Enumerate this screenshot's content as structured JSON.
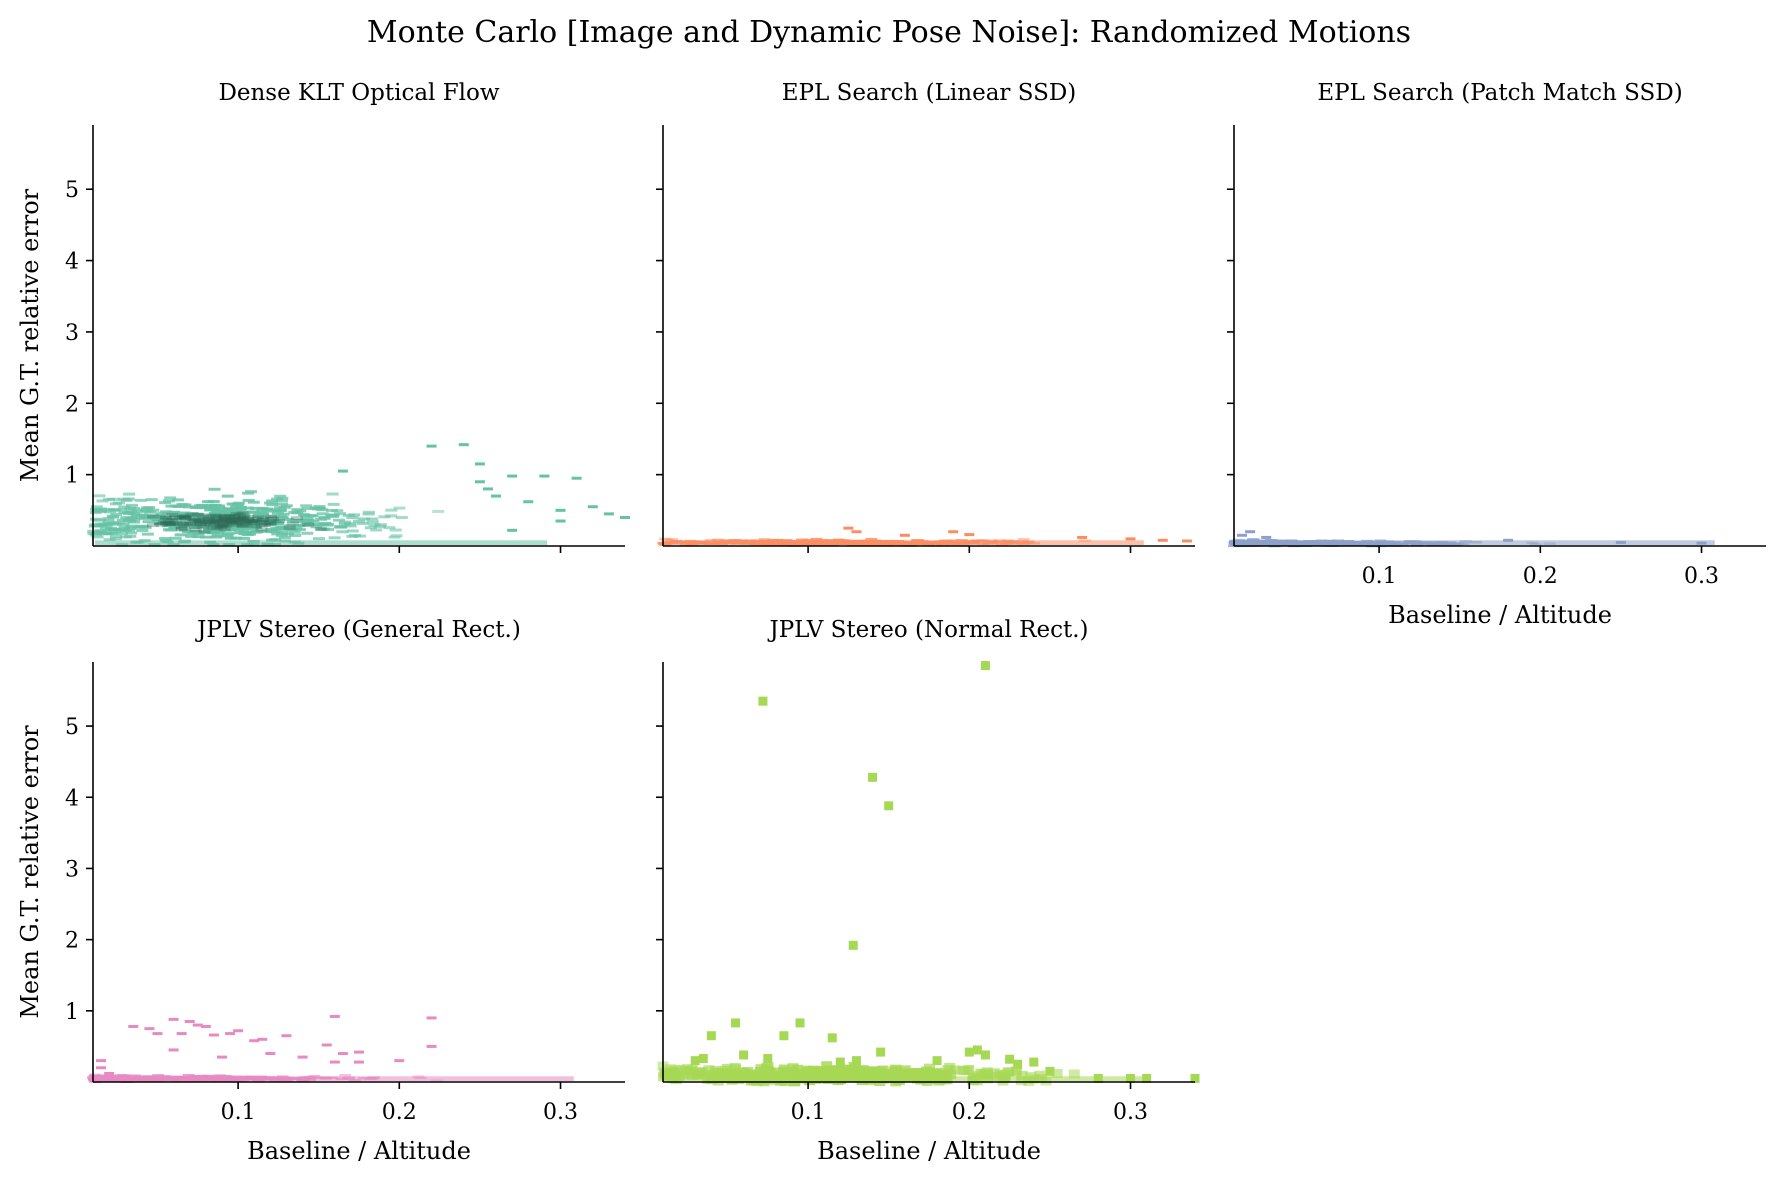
{
  "figure": {
    "title": "Monte Carlo [Image and Dynamic Pose Noise]: Randomized Motions"
  },
  "chart_data": [
    {
      "type": "heatmap",
      "title": "Dense KLT Optical Flow",
      "xlabel": "",
      "ylabel": "Mean G.T. relative error",
      "xlim": [
        0.01,
        0.34
      ],
      "ylim": [
        0,
        5.9
      ],
      "xticks": [],
      "yticks": [
        "1",
        "2",
        "3",
        "4",
        "5"
      ],
      "color": "#66c2a5",
      "density_center": [
        0.09,
        0.35
      ],
      "sparse_points": [
        [
          0.22,
          1.4
        ],
        [
          0.24,
          1.42
        ],
        [
          0.165,
          1.05
        ],
        [
          0.25,
          1.15
        ],
        [
          0.27,
          0.98
        ],
        [
          0.29,
          0.98
        ],
        [
          0.31,
          0.95
        ],
        [
          0.34,
          0.4
        ],
        [
          0.25,
          0.9
        ],
        [
          0.255,
          0.8
        ],
        [
          0.26,
          0.7
        ],
        [
          0.28,
          0.62
        ],
        [
          0.3,
          0.5
        ],
        [
          0.33,
          0.45
        ],
        [
          0.32,
          0.55
        ],
        [
          0.27,
          0.22
        ],
        [
          0.3,
          0.35
        ]
      ]
    },
    {
      "type": "heatmap",
      "title": "EPL Search (Linear SSD)",
      "xlabel": "",
      "ylabel": "",
      "xlim": [
        0.01,
        0.34
      ],
      "ylim": [
        0,
        5.9
      ],
      "xticks": [],
      "yticks": [],
      "color": "#fc8d62",
      "density_center": [
        0.12,
        0.05
      ],
      "sparse_points": [
        [
          0.125,
          0.25
        ],
        [
          0.13,
          0.2
        ],
        [
          0.19,
          0.2
        ],
        [
          0.2,
          0.16
        ],
        [
          0.16,
          0.15
        ],
        [
          0.27,
          0.12
        ],
        [
          0.3,
          0.1
        ],
        [
          0.32,
          0.08
        ],
        [
          0.335,
          0.07
        ]
      ]
    },
    {
      "type": "heatmap",
      "title": "EPL Search (Patch Match SSD)",
      "xlabel": "Baseline / Altitude",
      "ylabel": "",
      "xlim": [
        0.01,
        0.34
      ],
      "ylim": [
        0,
        5.9
      ],
      "xticks": [
        "0.1",
        "0.2",
        "0.3"
      ],
      "yticks": [],
      "color": "#8da0cb",
      "density_center": [
        0.05,
        0.04
      ],
      "sparse_points": [
        [
          0.02,
          0.2
        ],
        [
          0.015,
          0.15
        ],
        [
          0.03,
          0.12
        ],
        [
          0.18,
          0.08
        ],
        [
          0.25,
          0.05
        ],
        [
          0.3,
          0.04
        ]
      ]
    },
    {
      "type": "heatmap",
      "title": "JPLV Stereo (General Rect.)",
      "xlabel": "Baseline / Altitude",
      "ylabel": "Mean G.T. relative error",
      "xlim": [
        0.01,
        0.34
      ],
      "ylim": [
        0,
        5.9
      ],
      "xticks": [
        "0.1",
        "0.2",
        "0.3"
      ],
      "yticks": [
        "1",
        "2",
        "3",
        "4",
        "5"
      ],
      "color": "#e78ac3",
      "density_center": [
        0.06,
        0.05
      ],
      "sparse_points": [
        [
          0.035,
          0.78
        ],
        [
          0.045,
          0.75
        ],
        [
          0.05,
          0.68
        ],
        [
          0.065,
          0.68
        ],
        [
          0.06,
          0.88
        ],
        [
          0.07,
          0.85
        ],
        [
          0.075,
          0.8
        ],
        [
          0.08,
          0.78
        ],
        [
          0.085,
          0.66
        ],
        [
          0.095,
          0.68
        ],
        [
          0.1,
          0.72
        ],
        [
          0.11,
          0.58
        ],
        [
          0.115,
          0.6
        ],
        [
          0.13,
          0.65
        ],
        [
          0.155,
          0.52
        ],
        [
          0.16,
          0.92
        ],
        [
          0.165,
          0.4
        ],
        [
          0.175,
          0.28
        ],
        [
          0.22,
          0.9
        ],
        [
          0.22,
          0.5
        ],
        [
          0.2,
          0.3
        ],
        [
          0.16,
          0.28
        ],
        [
          0.06,
          0.45
        ],
        [
          0.09,
          0.35
        ],
        [
          0.12,
          0.4
        ],
        [
          0.14,
          0.35
        ],
        [
          0.175,
          0.42
        ],
        [
          0.015,
          0.3
        ],
        [
          0.015,
          0.2
        ],
        [
          0.02,
          0.12
        ]
      ]
    },
    {
      "type": "heatmap",
      "title": "JPLV Stereo (Normal Rect.)",
      "xlabel": "Baseline / Altitude",
      "ylabel": "",
      "xlim": [
        0.01,
        0.34
      ],
      "ylim": [
        0,
        5.9
      ],
      "xticks": [
        "0.1",
        "0.2",
        "0.3"
      ],
      "yticks": [],
      "color": "#a6d854",
      "density_center": [
        0.12,
        0.1
      ],
      "sparse_points": [
        [
          0.072,
          5.35
        ],
        [
          0.21,
          5.85
        ],
        [
          0.14,
          4.28
        ],
        [
          0.15,
          3.88
        ],
        [
          0.128,
          1.92
        ],
        [
          0.055,
          0.83
        ],
        [
          0.095,
          0.83
        ],
        [
          0.04,
          0.65
        ],
        [
          0.085,
          0.65
        ],
        [
          0.115,
          0.62
        ],
        [
          0.145,
          0.42
        ],
        [
          0.2,
          0.42
        ],
        [
          0.205,
          0.45
        ],
        [
          0.21,
          0.38
        ],
        [
          0.23,
          0.25
        ],
        [
          0.24,
          0.28
        ],
        [
          0.28,
          0.05
        ],
        [
          0.3,
          0.05
        ],
        [
          0.31,
          0.05
        ],
        [
          0.34,
          0.05
        ],
        [
          0.06,
          0.38
        ],
        [
          0.035,
          0.33
        ],
        [
          0.03,
          0.3
        ],
        [
          0.075,
          0.33
        ],
        [
          0.13,
          0.3
        ],
        [
          0.12,
          0.28
        ],
        [
          0.18,
          0.3
        ],
        [
          0.225,
          0.32
        ],
        [
          0.25,
          0.15
        ]
      ]
    }
  ]
}
